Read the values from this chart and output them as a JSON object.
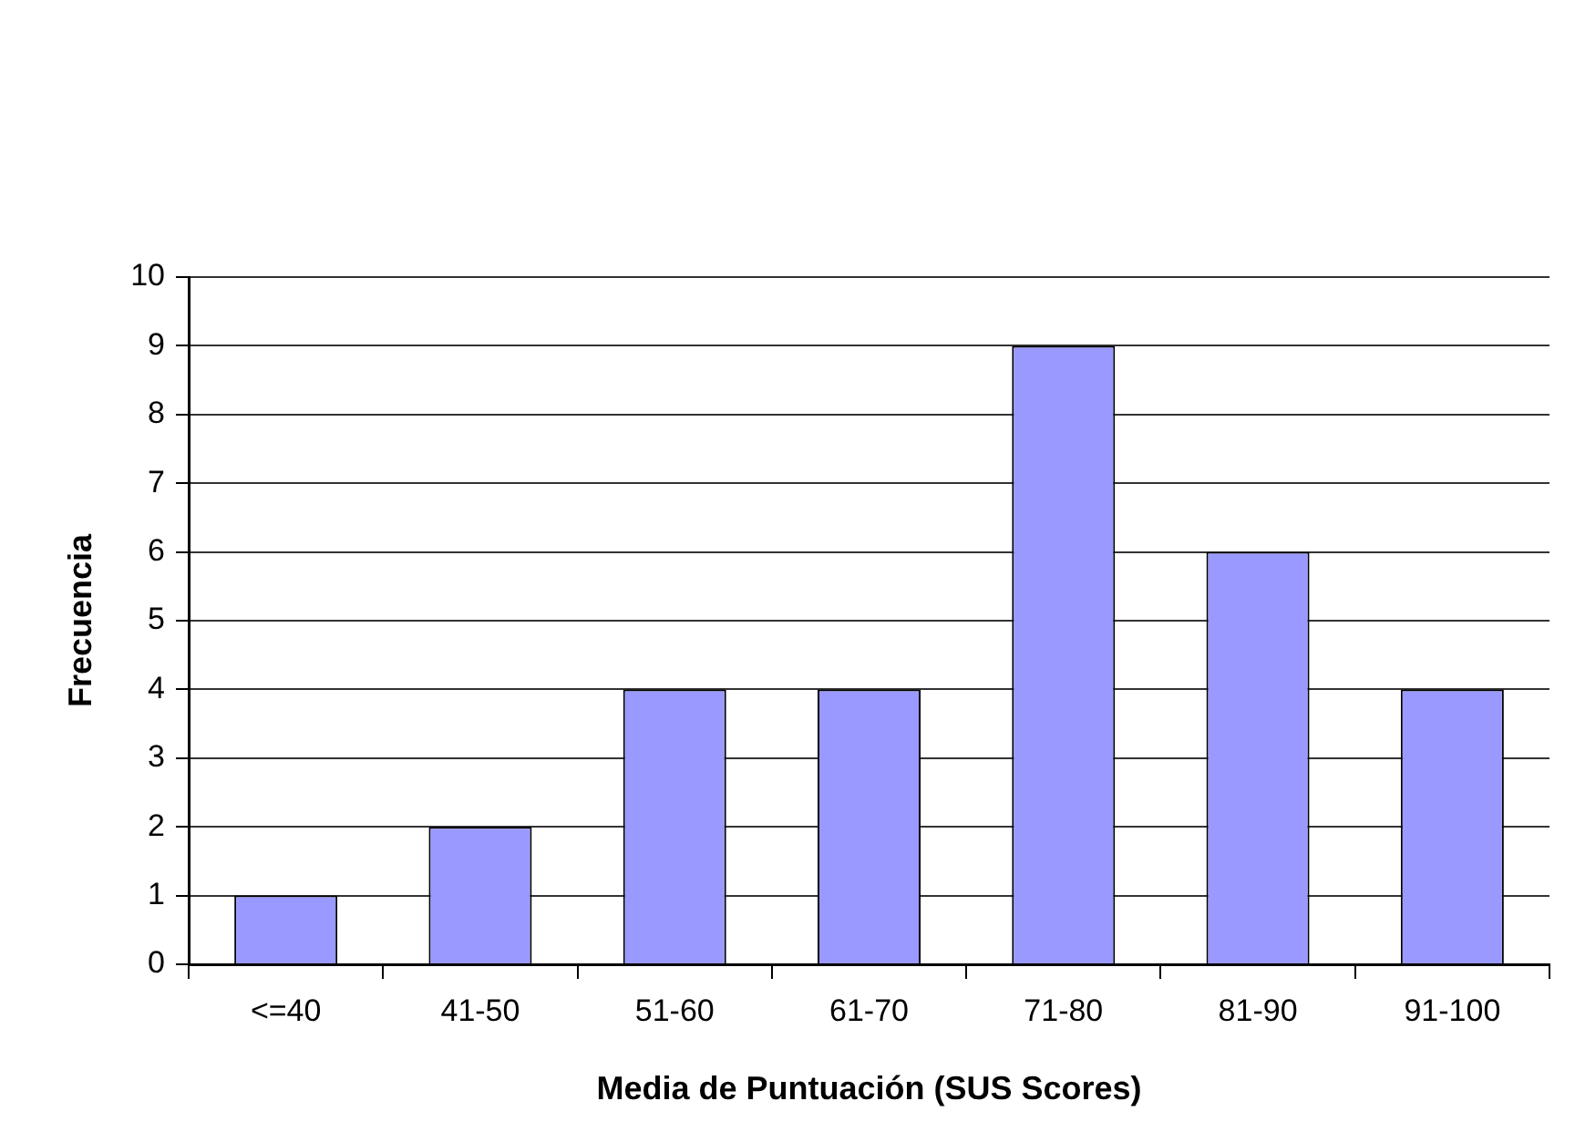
{
  "chart_data": {
    "type": "bar",
    "xlabel": "Media de Puntuación (SUS Scores)",
    "ylabel": "Frecuencia",
    "categories": [
      "<=40",
      "41-50",
      "51-60",
      "61-70",
      "71-80",
      "81-90",
      "91-100"
    ],
    "values": [
      1,
      2,
      4,
      4,
      9,
      6,
      4
    ],
    "color": "#9999ff",
    "ylim": [
      0,
      10
    ],
    "yticks": [
      0,
      1,
      2,
      3,
      4,
      5,
      6,
      7,
      8,
      9,
      10
    ],
    "grid": "y",
    "legend": false
  }
}
